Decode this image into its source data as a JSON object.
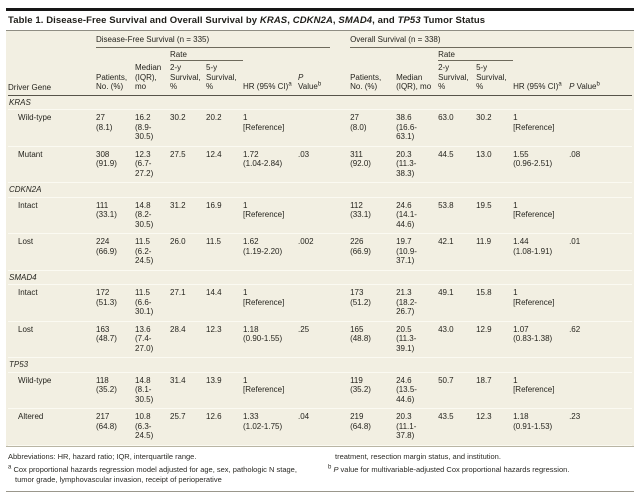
{
  "title": {
    "parts": [
      {
        "text": "Table 1. Disease-Free Survival and Overall Survival by ",
        "italic": false
      },
      {
        "text": "KRAS",
        "italic": true
      },
      {
        "text": ", ",
        "italic": false
      },
      {
        "text": "CDKN2A",
        "italic": true
      },
      {
        "text": ", ",
        "italic": false
      },
      {
        "text": "SMAD4",
        "italic": true
      },
      {
        "text": ", and ",
        "italic": false
      },
      {
        "text": "TP53",
        "italic": true
      },
      {
        "text": " Tumor Status",
        "italic": false
      }
    ]
  },
  "groups": [
    {
      "label": "Disease-Free Survival (n = 335)"
    },
    {
      "label": "Overall Survival (n = 338)"
    }
  ],
  "headers": {
    "driver_gene": "Driver Gene",
    "patients": "Patients, No. (%)",
    "median": "Median (IQR), mo",
    "rate": "Rate",
    "rate_2y": "2-y Survival, %",
    "rate_5y": "5-y Survival, %",
    "hr": "HR (95% CI)",
    "hr_sup": "a",
    "p_italic": "P",
    "p_rest": " Value",
    "p_sup": "b"
  },
  "sections": [
    {
      "gene": "KRAS",
      "rows": [
        {
          "label": "Wild-type",
          "dfs": {
            "patients": [
              "27",
              "(8.1)"
            ],
            "median": [
              "16.2",
              "(8.9-30.5)"
            ],
            "y2": "30.2",
            "y5": "20.2",
            "hr": [
              "1",
              "[Reference]"
            ],
            "p": ""
          },
          "os": {
            "patients": [
              "27",
              "(8.0)"
            ],
            "median": [
              "38.6",
              "(16.6-63.1)"
            ],
            "y2": "63.0",
            "y5": "30.2",
            "hr": [
              "1",
              "[Reference]"
            ],
            "p": ""
          }
        },
        {
          "label": "Mutant",
          "dfs": {
            "patients": [
              "308",
              "(91.9)"
            ],
            "median": [
              "12.3",
              "(6.7-27.2)"
            ],
            "y2": "27.5",
            "y5": "12.4",
            "hr": [
              "1.72",
              "(1.04-2.84)"
            ],
            "p": ".03"
          },
          "os": {
            "patients": [
              "311",
              "(92.0)"
            ],
            "median": [
              "20.3",
              "(11.3-38.3)"
            ],
            "y2": "44.5",
            "y5": "13.0",
            "hr": [
              "1.55",
              "(0.96-2.51)"
            ],
            "p": ".08"
          }
        }
      ]
    },
    {
      "gene": "CDKN2A",
      "rows": [
        {
          "label": "Intact",
          "dfs": {
            "patients": [
              "111",
              "(33.1)"
            ],
            "median": [
              "14.8",
              "(8.2-30.5)"
            ],
            "y2": "31.2",
            "y5": "16.9",
            "hr": [
              "1",
              "[Reference]"
            ],
            "p": ""
          },
          "os": {
            "patients": [
              "112",
              "(33.1)"
            ],
            "median": [
              "24.6",
              "(14.1-44.6)"
            ],
            "y2": "53.8",
            "y5": "19.5",
            "hr": [
              "1",
              "[Reference]"
            ],
            "p": ""
          }
        },
        {
          "label": "Lost",
          "dfs": {
            "patients": [
              "224",
              "(66.9)"
            ],
            "median": [
              "11.5",
              "(6.2-24.5)"
            ],
            "y2": "26.0",
            "y5": "11.5",
            "hr": [
              "1.62",
              "(1.19-2.20)"
            ],
            "p": ".002"
          },
          "os": {
            "patients": [
              "226",
              "(66.9)"
            ],
            "median": [
              "19.7",
              "(10.9-37.1)"
            ],
            "y2": "42.1",
            "y5": "11.9",
            "hr": [
              "1.44",
              "(1.08-1.91)"
            ],
            "p": ".01"
          }
        }
      ]
    },
    {
      "gene": "SMAD4",
      "rows": [
        {
          "label": "Intact",
          "dfs": {
            "patients": [
              "172",
              "(51.3)"
            ],
            "median": [
              "11.5",
              "(6.6-30.1)"
            ],
            "y2": "27.1",
            "y5": "14.4",
            "hr": [
              "1",
              "[Reference]"
            ],
            "p": ""
          },
          "os": {
            "patients": [
              "173",
              "(51.2)"
            ],
            "median": [
              "21.3",
              "(18.2-26.7)"
            ],
            "y2": "49.1",
            "y5": "15.8",
            "hr": [
              "1",
              "[Reference]"
            ],
            "p": ""
          }
        },
        {
          "label": "Lost",
          "dfs": {
            "patients": [
              "163",
              "(48.7)"
            ],
            "median": [
              "13.6",
              "(7.4-27.0)"
            ],
            "y2": "28.4",
            "y5": "12.3",
            "hr": [
              "1.18",
              "(0.90-1.55)"
            ],
            "p": ".25"
          },
          "os": {
            "patients": [
              "165",
              "(48.8)"
            ],
            "median": [
              "20.5",
              "(11.3-39.1)"
            ],
            "y2": "43.0",
            "y5": "12.9",
            "hr": [
              "1.07",
              "(0.83-1.38)"
            ],
            "p": ".62"
          }
        }
      ]
    },
    {
      "gene": "TP53",
      "rows": [
        {
          "label": "Wild-type",
          "dfs": {
            "patients": [
              "118",
              "(35.2)"
            ],
            "median": [
              "14.8",
              "(8.1-30.5)"
            ],
            "y2": "31.4",
            "y5": "13.9",
            "hr": [
              "1",
              "[Reference]"
            ],
            "p": ""
          },
          "os": {
            "patients": [
              "119",
              "(35.2)"
            ],
            "median": [
              "24.6",
              "(13.5-44.6)"
            ],
            "y2": "50.7",
            "y5": "18.7",
            "hr": [
              "1",
              "[Reference]"
            ],
            "p": ""
          }
        },
        {
          "label": "Altered",
          "dfs": {
            "patients": [
              "217",
              "(64.8)"
            ],
            "median": [
              "10.8",
              "(6.3-24.5)"
            ],
            "y2": "25.7",
            "y5": "12.6",
            "hr": [
              "1.33",
              "(1.02-1.75)"
            ],
            "p": ".04"
          },
          "os": {
            "patients": [
              "219",
              "(64.8)"
            ],
            "median": [
              "20.3",
              "(11.1-37.8)"
            ],
            "y2": "43.5",
            "y5": "12.3",
            "hr": [
              "1.18",
              "(0.91-1.53)"
            ],
            "p": ".23"
          }
        }
      ]
    }
  ],
  "footnotes": {
    "abbreviations": "Abbreviations: HR, hazard ratio; IQR, interquartile range.",
    "a_sup": "a",
    "a_text": "Cox proportional hazards regression model adjusted for age, sex, pathologic N stage, tumor grade, lymphovascular invasion, receipt of perioperative",
    "a_continued": "treatment, resection margin status, and institution.",
    "b_sup": "b",
    "b_p": "P",
    "b_text": " value for multivariable-adjusted Cox proportional hazards regression."
  },
  "colors": {
    "table_background": "#f2efe2",
    "top_rule": "#161616",
    "header_rule": "#57544a",
    "text": "#1f1e19"
  }
}
